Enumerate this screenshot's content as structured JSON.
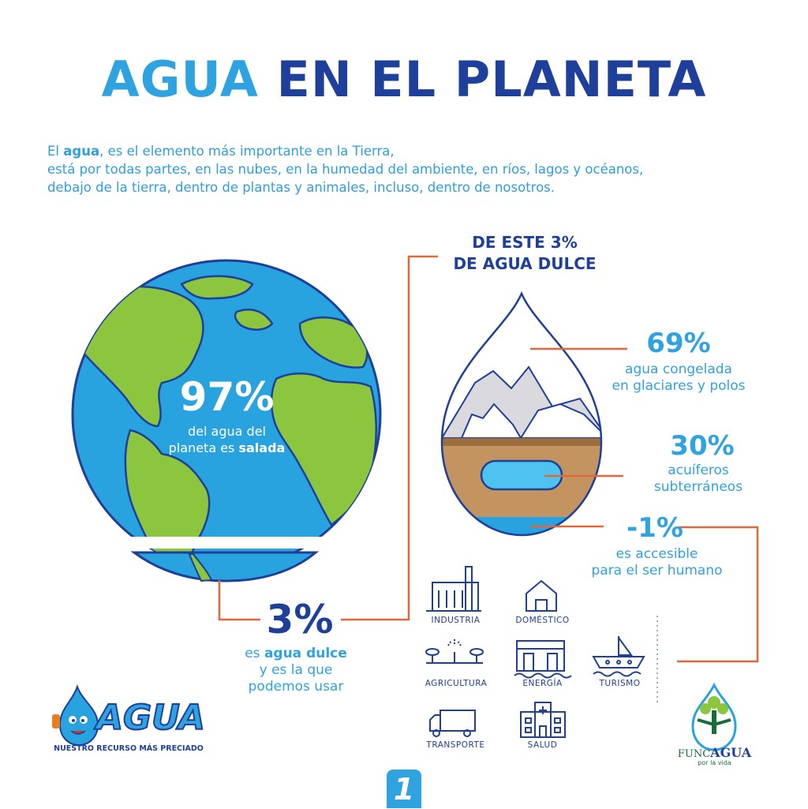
{
  "title": {
    "word1": "AGUA",
    "word2": "EN EL PLANETA"
  },
  "intro": {
    "l1_pre": "El ",
    "l1_bold": "agua",
    "l1_post": ", es el elemento más importante en la Tierra,",
    "l2": "está por todas partes, en las nubes, en la humedad del ambiente, en ríos, lagos y océanos,",
    "l3": "debajo de la tierra, dentro de plantas y animales, incluso, dentro de nosotros."
  },
  "globe": {
    "percent": "97%",
    "line1": "del agua del",
    "line2_pre": "planeta es ",
    "line2_bold": "salada"
  },
  "freshwater": {
    "percent": "3%",
    "line1_pre": "es ",
    "line1_bold": "agua dulce",
    "line2": "y es la que",
    "line3": "podemos usar"
  },
  "drop": {
    "header_line1": "DE ESTE 3%",
    "header_line2": "DE AGUA DULCE",
    "items": [
      {
        "percent": "69%",
        "line1": "agua congelada",
        "line2": "en glaciares y polos"
      },
      {
        "percent": "30%",
        "line1": "acuíferos",
        "line2": "subterráneos"
      },
      {
        "percent": "-1%",
        "line1": "es accesible",
        "line2": "para el ser humano"
      }
    ]
  },
  "uses": [
    {
      "label": "INDUSTRIA",
      "icon": "factory-icon"
    },
    {
      "label": "DOMÉSTICO",
      "icon": "house-icon"
    },
    {
      "label": "AGRICULTURA",
      "icon": "sprinkler-icon"
    },
    {
      "label": "ENERGÍA",
      "icon": "dam-icon"
    },
    {
      "label": "TURISMO",
      "icon": "boat-icon"
    },
    {
      "label": "TRANSPORTE",
      "icon": "truck-icon"
    },
    {
      "label": "SALUD",
      "icon": "hospital-icon"
    }
  ],
  "brand": {
    "logo_text": "AGUA",
    "tagline": "NUESTRO RECURSO MÁS PRECIADO"
  },
  "partner": {
    "name_pre": "FUNC",
    "name_bold": "AGUA",
    "tagline": "por la vida"
  },
  "page_number": "1",
  "colors": {
    "light_blue": "#2ea3e0",
    "dark_blue": "#1e3f9a",
    "ocean": "#29a3e0",
    "land": "#8cc63f",
    "connector": "#e0683a",
    "soil": "#c39460"
  }
}
